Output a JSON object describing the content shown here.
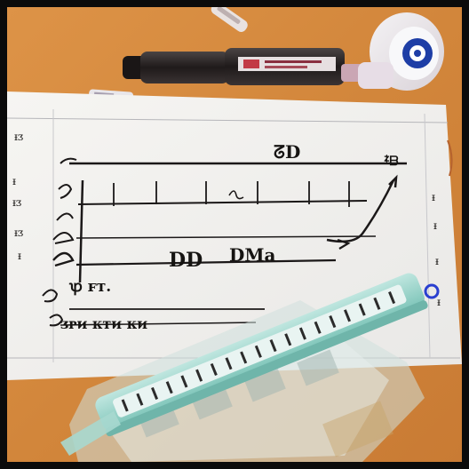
{
  "scene": {
    "description_colors": {
      "table": "#d68a3f",
      "paper": "#f7f6f4",
      "ink": "#161412",
      "ruler": "#8fd0c6",
      "pen_body": "#2a2424",
      "tape_blue": "#1e3ea6"
    },
    "paper_text": {
      "top_label": "ᘔD",
      "right_top": "ᙇᗷ",
      "mid_label": "DD",
      "mid_label2": "DMa",
      "row_label": "ꝕ ꜰᴛ.",
      "bottom_row": "ᴣᴘᴎ ᴋᴛᴎ ᴋᴎ",
      "left_marks": [
        "ᵻᴣ",
        "ᵻ",
        "ᵻᴣ",
        "ᵻᴣ",
        "ᵻ"
      ],
      "right_marks": [
        "ᵻ",
        "ᵻ",
        "ᵻ",
        "ᵻ"
      ]
    }
  }
}
